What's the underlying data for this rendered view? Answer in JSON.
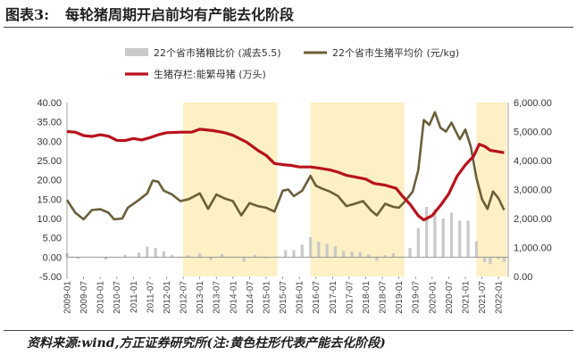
{
  "figure": {
    "number": "图表3:",
    "title": "每轮猪周期开启前均有产能去化阶段",
    "source": "资料来源:wind,方正证券研究所(注:黄色柱形代表产能去化阶段)"
  },
  "colors": {
    "shade": "#fdf0c4",
    "bars": "#c9c9c9",
    "price_line": "#6b5f3a",
    "inventory_line": "#b8121c"
  },
  "chart_data": {
    "type": "line",
    "x_ticks": [
      "2009-01",
      "2009-07",
      "2010-01",
      "2010-07",
      "2011-01",
      "2011-07",
      "2012-01",
      "2012-07",
      "2013-01",
      "2013-07",
      "2014-01",
      "2014-07",
      "2015-01",
      "2015-07",
      "2016-01",
      "2016-07",
      "2017-01",
      "2017-07",
      "2018-01",
      "2018-07",
      "2019-01",
      "2019-07",
      "2020-01",
      "2020-07",
      "2021-01",
      "2021-07",
      "2022-01"
    ],
    "y_left": {
      "min": -5,
      "max": 40,
      "ticks": [
        "40.00",
        "35.00",
        "30.00",
        "25.00",
        "20.00",
        "15.00",
        "10.00",
        "5.00",
        "0.00",
        "-5.00"
      ]
    },
    "y_right": {
      "min": 0,
      "max": 6000,
      "ticks": [
        "6,000.00",
        "5,000.00",
        "4,000.00",
        "3,000.00",
        "2,000.00",
        "1,000.00",
        "0.00"
      ]
    },
    "shaded_periods": [
      {
        "start": "2012-07",
        "end": "2015-05"
      },
      {
        "start": "2016-05",
        "end": "2019-03"
      },
      {
        "start": "2021-05",
        "end": "2022-04"
      }
    ],
    "series": [
      {
        "name": "22个省市猪粮比价 (减去5.5)",
        "type": "bar",
        "axis": "left",
        "points": [
          [
            "2009-01",
            1.0
          ],
          [
            "2009-03",
            0.2
          ],
          [
            "2009-05",
            -0.4
          ],
          [
            "2009-07",
            0.1
          ],
          [
            "2010-03",
            -0.6
          ],
          [
            "2010-07",
            0.0
          ],
          [
            "2010-10",
            0.6
          ],
          [
            "2011-03",
            1.2
          ],
          [
            "2011-06",
            2.7
          ],
          [
            "2011-09",
            2.4
          ],
          [
            "2011-12",
            1.5
          ],
          [
            "2012-03",
            0.6
          ],
          [
            "2012-06",
            -0.2
          ],
          [
            "2012-09",
            0.5
          ],
          [
            "2013-01",
            1.0
          ],
          [
            "2013-05",
            -0.7
          ],
          [
            "2013-09",
            0.8
          ],
          [
            "2014-01",
            0.1
          ],
          [
            "2014-05",
            -1.2
          ],
          [
            "2014-09",
            0.6
          ],
          [
            "2015-01",
            -0.3
          ],
          [
            "2015-05",
            0.0
          ],
          [
            "2015-08",
            1.8
          ],
          [
            "2015-11",
            1.8
          ],
          [
            "2016-02",
            3.2
          ],
          [
            "2016-05",
            5.2
          ],
          [
            "2016-08",
            4.0
          ],
          [
            "2016-11",
            3.5
          ],
          [
            "2017-02",
            2.8
          ],
          [
            "2017-05",
            1.6
          ],
          [
            "2017-08",
            1.4
          ],
          [
            "2017-11",
            1.3
          ],
          [
            "2018-02",
            0.7
          ],
          [
            "2018-05",
            -0.9
          ],
          [
            "2018-08",
            0.5
          ],
          [
            "2018-11",
            1.0
          ],
          [
            "2019-02",
            0.0
          ],
          [
            "2019-05",
            2.4
          ],
          [
            "2019-08",
            7.5
          ],
          [
            "2019-11",
            13.0
          ],
          [
            "2020-02",
            12.5
          ],
          [
            "2020-05",
            10.0
          ],
          [
            "2020-08",
            11.5
          ],
          [
            "2020-11",
            9.5
          ],
          [
            "2021-02",
            9.5
          ],
          [
            "2021-05",
            4.1
          ],
          [
            "2021-08",
            -1.3
          ],
          [
            "2021-10",
            -1.8
          ],
          [
            "2022-01",
            -0.5
          ],
          [
            "2022-03",
            -1.2
          ]
        ]
      },
      {
        "name": "22个省市生猪平均价 (元/kg)",
        "type": "line",
        "axis": "left",
        "points": [
          [
            "2009-01",
            14.8
          ],
          [
            "2009-04",
            11.5
          ],
          [
            "2009-07",
            9.8
          ],
          [
            "2009-10",
            12.2
          ],
          [
            "2010-01",
            12.4
          ],
          [
            "2010-04",
            11.5
          ],
          [
            "2010-06",
            9.8
          ],
          [
            "2010-09",
            10.0
          ],
          [
            "2010-11",
            12.8
          ],
          [
            "2011-03",
            14.8
          ],
          [
            "2011-06",
            16.5
          ],
          [
            "2011-08",
            19.8
          ],
          [
            "2011-10",
            19.5
          ],
          [
            "2011-12",
            17.2
          ],
          [
            "2012-03",
            16.2
          ],
          [
            "2012-06",
            14.5
          ],
          [
            "2012-09",
            15.0
          ],
          [
            "2013-01",
            16.5
          ],
          [
            "2013-04",
            12.5
          ],
          [
            "2013-07",
            16.2
          ],
          [
            "2013-10",
            15.2
          ],
          [
            "2014-01",
            14.5
          ],
          [
            "2014-04",
            10.8
          ],
          [
            "2014-07",
            14.0
          ],
          [
            "2014-10",
            13.2
          ],
          [
            "2015-01",
            12.8
          ],
          [
            "2015-04",
            11.8
          ],
          [
            "2015-07",
            17.2
          ],
          [
            "2015-09",
            17.5
          ],
          [
            "2015-11",
            15.8
          ],
          [
            "2016-02",
            17.2
          ],
          [
            "2016-05",
            21.0
          ],
          [
            "2016-07",
            18.5
          ],
          [
            "2016-09",
            17.8
          ],
          [
            "2016-12",
            17.0
          ],
          [
            "2017-03",
            15.8
          ],
          [
            "2017-06",
            13.2
          ],
          [
            "2017-09",
            13.8
          ],
          [
            "2017-12",
            14.5
          ],
          [
            "2018-03",
            12.0
          ],
          [
            "2018-05",
            10.8
          ],
          [
            "2018-08",
            13.8
          ],
          [
            "2018-11",
            13.0
          ],
          [
            "2019-01",
            12.8
          ],
          [
            "2019-03",
            14.3
          ],
          [
            "2019-06",
            17.0
          ],
          [
            "2019-08",
            22.5
          ],
          [
            "2019-10",
            35.5
          ],
          [
            "2019-12",
            34.2
          ],
          [
            "2020-02",
            37.5
          ],
          [
            "2020-04",
            33.5
          ],
          [
            "2020-06",
            32.5
          ],
          [
            "2020-08",
            34.8
          ],
          [
            "2020-11",
            30.5
          ],
          [
            "2021-01",
            33.0
          ],
          [
            "2021-03",
            28.5
          ],
          [
            "2021-05",
            20.5
          ],
          [
            "2021-07",
            15.0
          ],
          [
            "2021-09",
            12.5
          ],
          [
            "2021-11",
            17.0
          ],
          [
            "2022-01",
            15.2
          ],
          [
            "2022-03",
            12.2
          ]
        ]
      },
      {
        "name": "生猪存栏:能繁母猪 (万头)",
        "type": "line",
        "axis": "right",
        "points": [
          [
            "2009-01",
            5000
          ],
          [
            "2009-04",
            4980
          ],
          [
            "2009-07",
            4860
          ],
          [
            "2009-10",
            4830
          ],
          [
            "2010-01",
            4890
          ],
          [
            "2010-04",
            4840
          ],
          [
            "2010-07",
            4700
          ],
          [
            "2010-10",
            4690
          ],
          [
            "2011-01",
            4760
          ],
          [
            "2011-04",
            4710
          ],
          [
            "2011-07",
            4790
          ],
          [
            "2011-10",
            4890
          ],
          [
            "2012-01",
            4960
          ],
          [
            "2012-06",
            4980
          ],
          [
            "2012-10",
            4980
          ],
          [
            "2013-01",
            5080
          ],
          [
            "2013-06",
            5030
          ],
          [
            "2013-10",
            4960
          ],
          [
            "2014-01",
            4870
          ],
          [
            "2014-06",
            4630
          ],
          [
            "2014-10",
            4350
          ],
          [
            "2015-01",
            4180
          ],
          [
            "2015-04",
            3900
          ],
          [
            "2015-07",
            3860
          ],
          [
            "2015-10",
            3830
          ],
          [
            "2016-01",
            3780
          ],
          [
            "2016-05",
            3780
          ],
          [
            "2016-08",
            3740
          ],
          [
            "2016-12",
            3680
          ],
          [
            "2017-03",
            3600
          ],
          [
            "2017-06",
            3490
          ],
          [
            "2017-10",
            3420
          ],
          [
            "2018-01",
            3360
          ],
          [
            "2018-04",
            3210
          ],
          [
            "2018-08",
            3150
          ],
          [
            "2018-12",
            3040
          ],
          [
            "2019-02",
            2800
          ],
          [
            "2019-05",
            2490
          ],
          [
            "2019-08",
            2100
          ],
          [
            "2019-10",
            1950
          ],
          [
            "2020-01",
            2100
          ],
          [
            "2020-04",
            2450
          ],
          [
            "2020-07",
            2850
          ],
          [
            "2020-10",
            3460
          ],
          [
            "2021-01",
            3850
          ],
          [
            "2021-04",
            4150
          ],
          [
            "2021-06",
            4560
          ],
          [
            "2021-08",
            4490
          ],
          [
            "2021-10",
            4350
          ],
          [
            "2021-12",
            4320
          ],
          [
            "2022-03",
            4270
          ]
        ]
      }
    ]
  }
}
